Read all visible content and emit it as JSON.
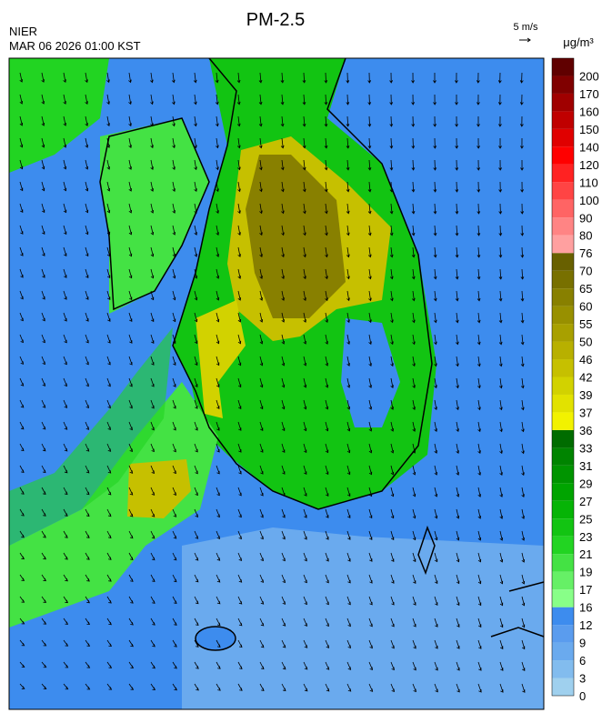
{
  "header": {
    "agency": "NIER",
    "timestamp": "MAR 06 2026 01:00 KST",
    "title": "PM-2.5"
  },
  "wind_legend": {
    "label": "5 m/s"
  },
  "colorbar": {
    "unit": "μg/m³",
    "levels": [
      0,
      3,
      6,
      9,
      12,
      16,
      17,
      19,
      21,
      23,
      25,
      27,
      29,
      31,
      33,
      36,
      37,
      39,
      42,
      46,
      50,
      55,
      60,
      65,
      70,
      76,
      80,
      90,
      100,
      110,
      120,
      140,
      150,
      160,
      170,
      200
    ],
    "colors": [
      "#9fd0ee",
      "#82bcee",
      "#6aaaee",
      "#5a9cee",
      "#3d8cee",
      "#88ff88",
      "#66f066",
      "#44e244",
      "#22d422",
      "#12c412",
      "#06b406",
      "#00a400",
      "#009400",
      "#008400",
      "#006c00",
      "#f2f200",
      "#e2e200",
      "#d2d200",
      "#c6c000",
      "#b8b000",
      "#a8a000",
      "#989000",
      "#888000",
      "#787000",
      "#686000",
      "#ffa0a0",
      "#ff8484",
      "#ff6464",
      "#ff4444",
      "#ff2222",
      "#ff0000",
      "#e00000",
      "#c00000",
      "#a00000",
      "#800000",
      "#600000"
    ]
  }
}
